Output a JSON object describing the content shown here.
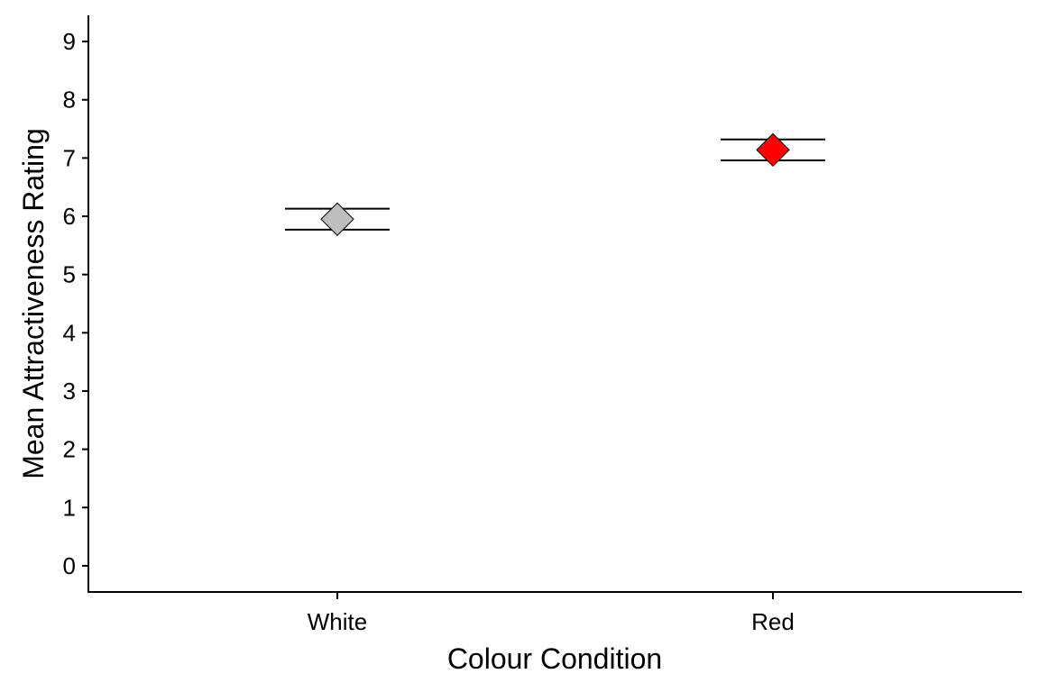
{
  "chart_data": {
    "type": "scatter",
    "xlabel": "Colour Condition",
    "ylabel": "Mean Attractiveness Rating",
    "ylim": [
      -0.45,
      9.45
    ],
    "yticks": [
      0,
      1,
      2,
      3,
      4,
      5,
      6,
      7,
      8,
      9
    ],
    "categories": [
      "White",
      "Red"
    ],
    "points": [
      {
        "category": "White",
        "mean": 5.95,
        "error_low": 5.77,
        "error_high": 6.13,
        "color": "#BEBEBE"
      },
      {
        "category": "Red",
        "mean": 7.14,
        "error_low": 6.96,
        "error_high": 7.32,
        "color": "#FF0000"
      }
    ],
    "marker": "diamond",
    "grid": false,
    "legend": "none"
  }
}
